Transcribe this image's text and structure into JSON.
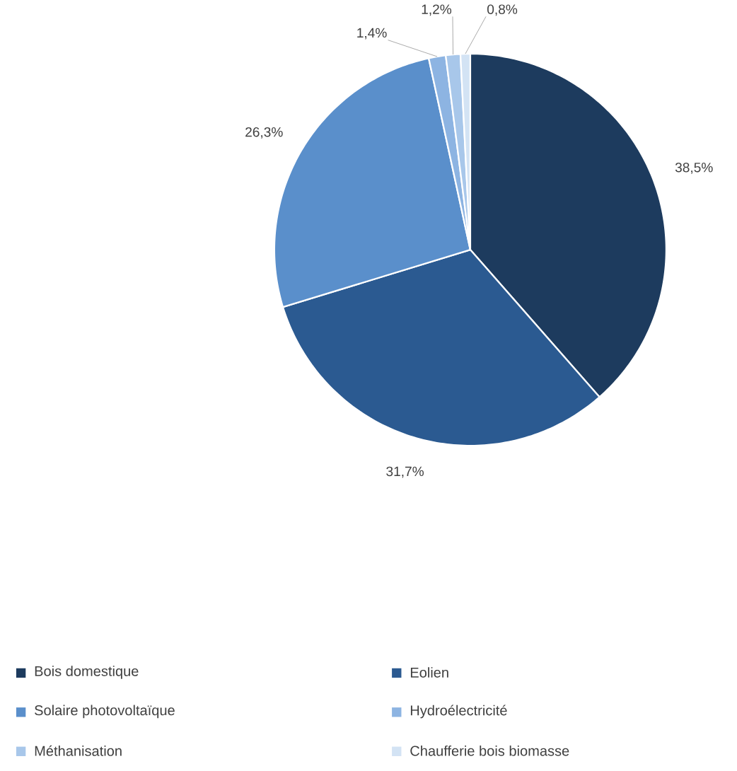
{
  "chart_data": {
    "type": "pie",
    "categories": [
      "Bois domestique",
      "Eolien",
      "Solaire photovoltaïque",
      "Hydroélectricité",
      "Méthanisation",
      "Chaufferie bois biomasse"
    ],
    "values": [
      38.5,
      31.7,
      26.3,
      1.4,
      1.2,
      0.8
    ],
    "colors": [
      "#1d3b5e",
      "#2b5a91",
      "#5a8fcb",
      "#8db4e2",
      "#a8c7ea",
      "#d3e3f4"
    ],
    "value_labels": [
      "38,5%",
      "31,7%",
      "26,3%",
      "1,4%",
      "1,2%",
      "0,8%"
    ],
    "legend": "bottom"
  }
}
